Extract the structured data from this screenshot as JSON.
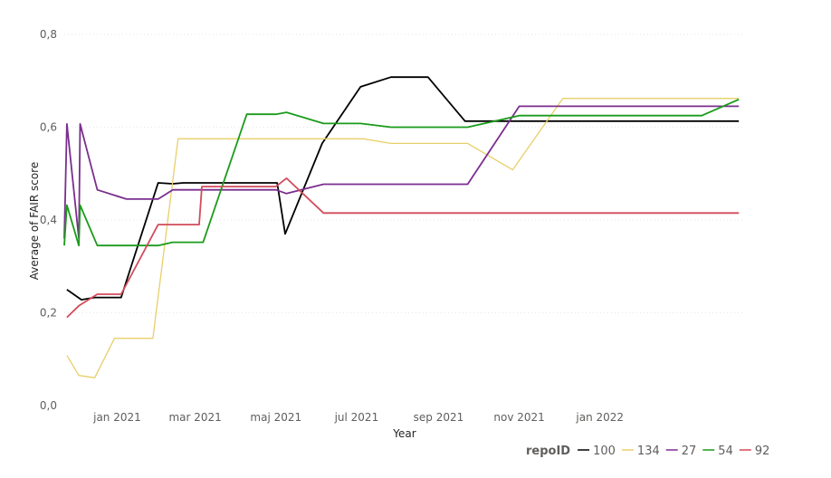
{
  "chart_data": {
    "type": "line",
    "title": "",
    "xlabel": "Year",
    "ylabel": "Average of FAIR score",
    "ylim": [
      0,
      0.8
    ],
    "yticks": [
      {
        "value": 0.0,
        "label": "0,0"
      },
      {
        "value": 0.2,
        "label": "0,2"
      },
      {
        "value": 0.4,
        "label": "0,4"
      },
      {
        "value": 0.6,
        "label": "0,6"
      },
      {
        "value": 0.8,
        "label": "0,8"
      }
    ],
    "xlim": [
      "2020-11-22",
      "2022-04-20"
    ],
    "xticks": [
      {
        "date": "2021-01-01",
        "label": "jan 2021"
      },
      {
        "date": "2021-03-01",
        "label": "mar 2021"
      },
      {
        "date": "2021-05-01",
        "label": "maj 2021"
      },
      {
        "date": "2021-07-01",
        "label": "jul 2021"
      },
      {
        "date": "2021-09-01",
        "label": "sep 2021"
      },
      {
        "date": "2021-11-01",
        "label": "nov 2021"
      },
      {
        "date": "2022-01-01",
        "label": "jan 2022"
      }
    ],
    "grid": true,
    "legend": {
      "title": "repoID",
      "position": "bottom-right"
    },
    "series": [
      {
        "name": "100",
        "color": "#000000",
        "points": [
          [
            "2020-11-24",
            0.25
          ],
          [
            "2020-12-05",
            0.228
          ],
          [
            "2020-12-15",
            0.233
          ],
          [
            "2021-01-04",
            0.233
          ],
          [
            "2021-02-01",
            0.48
          ],
          [
            "2021-02-12",
            0.478
          ],
          [
            "2021-02-20",
            0.48
          ],
          [
            "2021-05-02",
            0.48
          ],
          [
            "2021-05-08",
            0.37
          ],
          [
            "2021-06-05",
            0.565
          ],
          [
            "2021-07-04",
            0.687
          ],
          [
            "2021-07-27",
            0.708
          ],
          [
            "2021-08-24",
            0.708
          ],
          [
            "2021-09-21",
            0.613
          ],
          [
            "2022-04-16",
            0.613
          ]
        ]
      },
      {
        "name": "134",
        "color": "#e8cf6a",
        "points": [
          [
            "2020-11-24",
            0.108
          ],
          [
            "2020-12-03",
            0.065
          ],
          [
            "2020-12-15",
            0.06
          ],
          [
            "2020-12-30",
            0.145
          ],
          [
            "2021-01-28",
            0.145
          ],
          [
            "2021-02-16",
            0.575
          ],
          [
            "2021-07-06",
            0.575
          ],
          [
            "2021-07-27",
            0.565
          ],
          [
            "2021-09-23",
            0.565
          ],
          [
            "2021-10-27",
            0.508
          ],
          [
            "2021-12-04",
            0.662
          ],
          [
            "2022-04-16",
            0.662
          ]
        ]
      },
      {
        "name": "27",
        "color": "#7b2e8e",
        "points": [
          [
            "2020-11-22",
            0.36
          ],
          [
            "2020-11-24",
            0.607
          ],
          [
            "2020-12-03",
            0.36
          ],
          [
            "2020-12-04",
            0.607
          ],
          [
            "2020-12-17",
            0.465
          ],
          [
            "2021-01-08",
            0.445
          ],
          [
            "2021-02-01",
            0.445
          ],
          [
            "2021-02-12",
            0.465
          ],
          [
            "2021-05-01",
            0.465
          ],
          [
            "2021-05-09",
            0.457
          ],
          [
            "2021-06-06",
            0.477
          ],
          [
            "2021-09-23",
            0.477
          ],
          [
            "2021-11-01",
            0.645
          ],
          [
            "2022-04-16",
            0.645
          ]
        ]
      },
      {
        "name": "54",
        "color": "#1a9b1a",
        "points": [
          [
            "2020-11-22",
            0.345
          ],
          [
            "2020-11-24",
            0.432
          ],
          [
            "2020-12-03",
            0.345
          ],
          [
            "2020-12-04",
            0.432
          ],
          [
            "2020-12-17",
            0.345
          ],
          [
            "2021-02-01",
            0.345
          ],
          [
            "2021-02-12",
            0.352
          ],
          [
            "2021-03-07",
            0.352
          ],
          [
            "2021-04-09",
            0.628
          ],
          [
            "2021-05-01",
            0.628
          ],
          [
            "2021-05-09",
            0.632
          ],
          [
            "2021-06-06",
            0.608
          ],
          [
            "2021-07-04",
            0.608
          ],
          [
            "2021-07-27",
            0.6
          ],
          [
            "2021-09-23",
            0.6
          ],
          [
            "2021-11-01",
            0.625
          ],
          [
            "2022-03-19",
            0.625
          ],
          [
            "2022-04-16",
            0.66
          ]
        ]
      },
      {
        "name": "92",
        "color": "#d24b5a",
        "points": [
          [
            "2020-11-24",
            0.19
          ],
          [
            "2020-12-03",
            0.215
          ],
          [
            "2020-12-17",
            0.24
          ],
          [
            "2021-01-04",
            0.24
          ],
          [
            "2021-02-01",
            0.39
          ],
          [
            "2021-03-04",
            0.39
          ],
          [
            "2021-03-06",
            0.472
          ],
          [
            "2021-05-01",
            0.472
          ],
          [
            "2021-05-09",
            0.49
          ],
          [
            "2021-06-06",
            0.415
          ],
          [
            "2022-04-16",
            0.415
          ]
        ]
      }
    ]
  }
}
